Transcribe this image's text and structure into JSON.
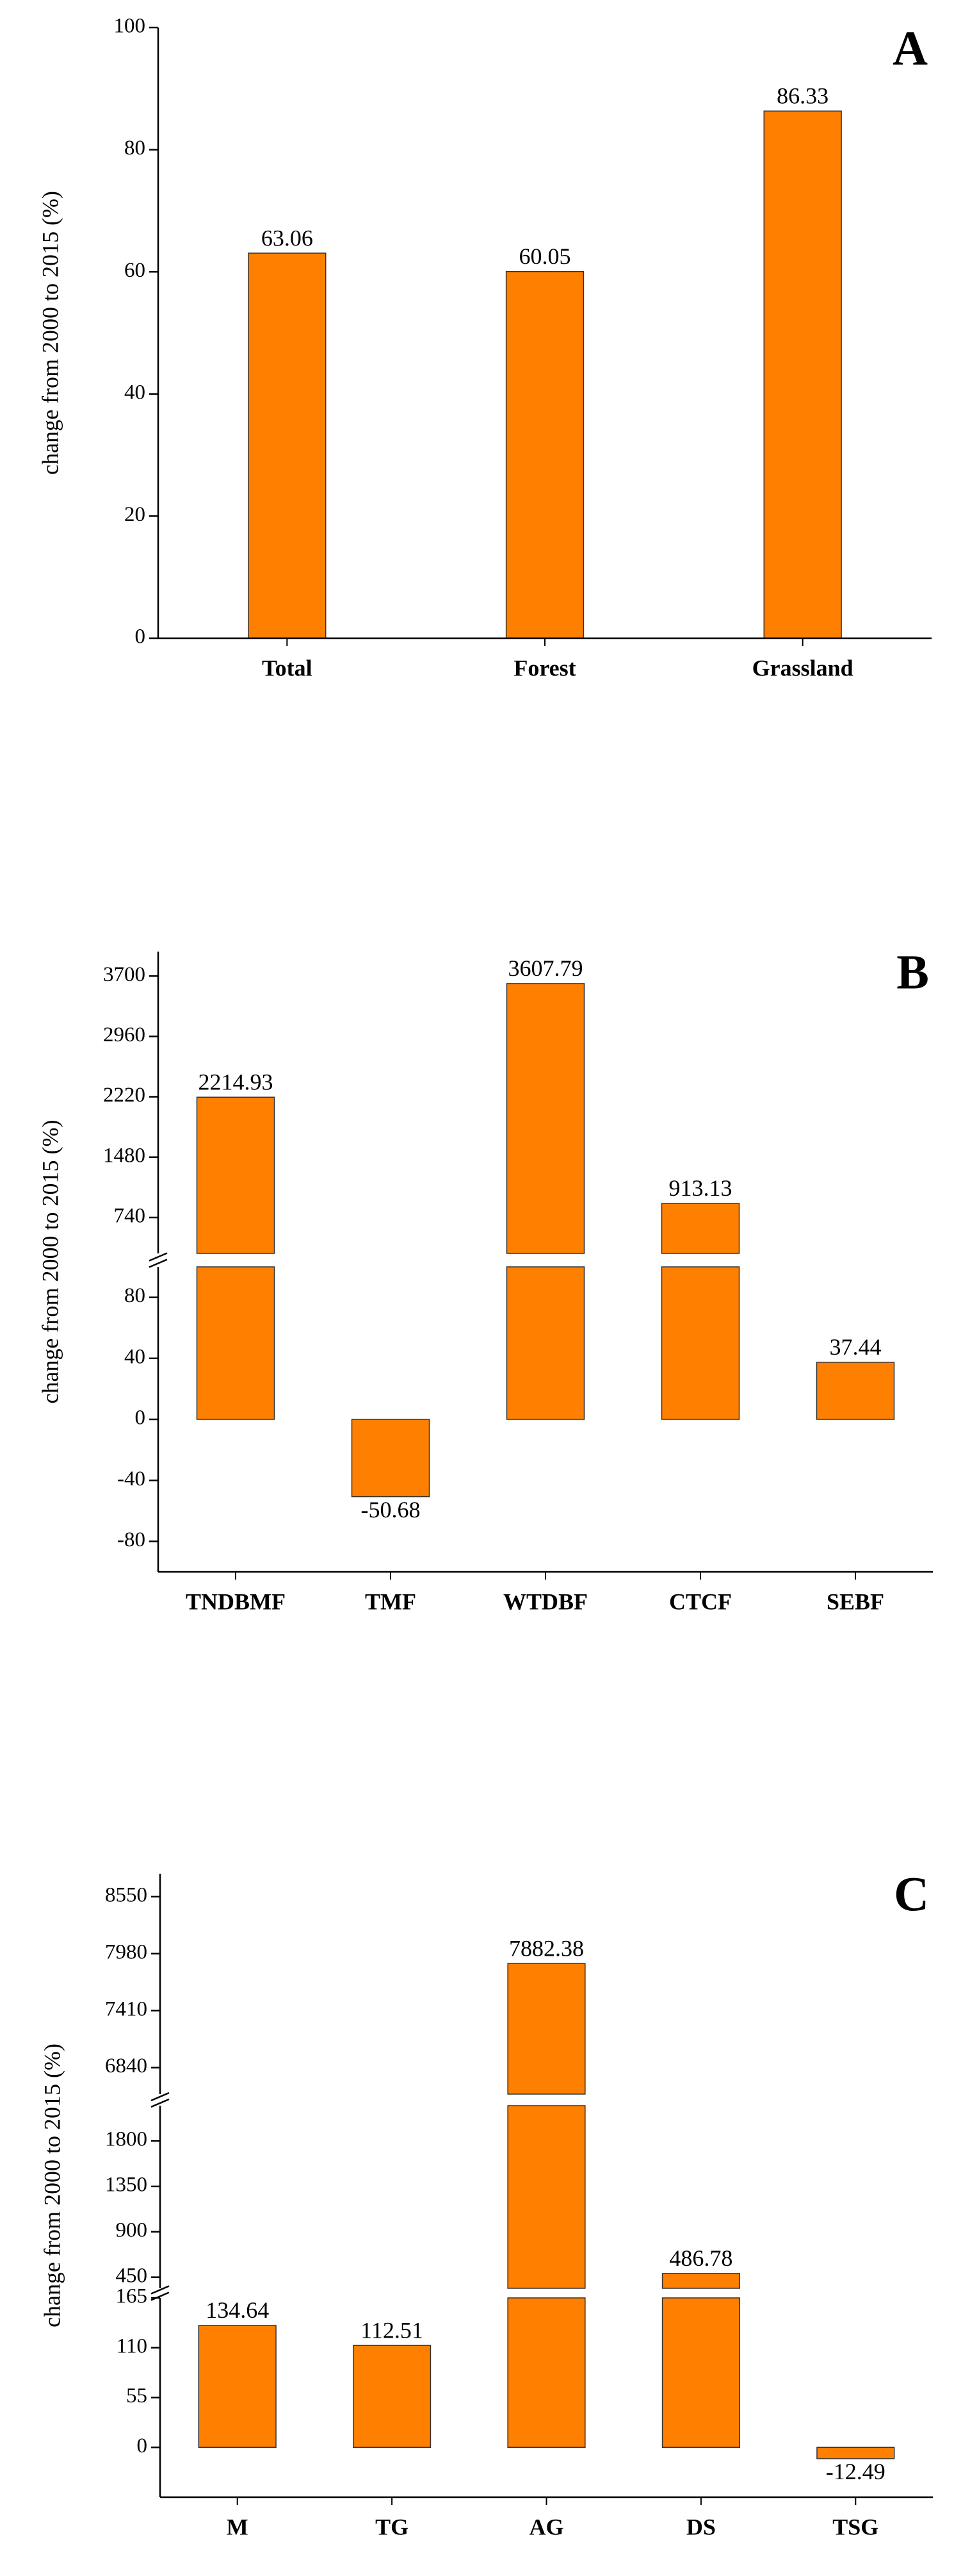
{
  "chart_data": [
    {
      "type": "bar",
      "panel_label": "A",
      "ylabel": "change from 2000 to 2015 (%)",
      "categories": [
        "Total",
        "Forest",
        "Grassland"
      ],
      "values": [
        63.06,
        60.05,
        86.33
      ],
      "color": "#ff7f00",
      "ylim": [
        0,
        100
      ],
      "yticks": [
        0,
        20,
        40,
        60,
        80,
        100
      ]
    },
    {
      "type": "bar",
      "panel_label": "B",
      "ylabel": "change from 2000 to 2015 (%)",
      "categories": [
        "TNDBMF",
        "TMF",
        "WTDBF",
        "CTCF",
        "SEBF"
      ],
      "values": [
        2214.93,
        -50.68,
        3607.79,
        913.13,
        37.44
      ],
      "color": "#ff7f00",
      "y_segments": [
        {
          "ylim": [
            -100,
            100
          ],
          "yticks": [
            -80,
            -40,
            0,
            40,
            80
          ]
        },
        {
          "ylim": [
            300,
            4000
          ],
          "yticks": [
            740,
            1480,
            2220,
            2960,
            3700
          ]
        }
      ]
    },
    {
      "type": "bar",
      "panel_label": "C",
      "ylabel": "change from 2000 to 2015 (%)",
      "categories": [
        "M",
        "TG",
        "AG",
        "DS",
        "TSG"
      ],
      "values": [
        134.64,
        112.51,
        7882.38,
        486.78,
        -12.49
      ],
      "color": "#ff7f00",
      "y_segments": [
        {
          "ylim": [
            -55,
            165
          ],
          "yticks": [
            0,
            55,
            110,
            165
          ]
        },
        {
          "ylim": [
            340,
            2150
          ],
          "yticks": [
            450,
            900,
            1350,
            1800
          ]
        },
        {
          "ylim": [
            6575,
            8780
          ],
          "yticks": [
            6840,
            7410,
            7980,
            8550
          ]
        }
      ]
    }
  ]
}
